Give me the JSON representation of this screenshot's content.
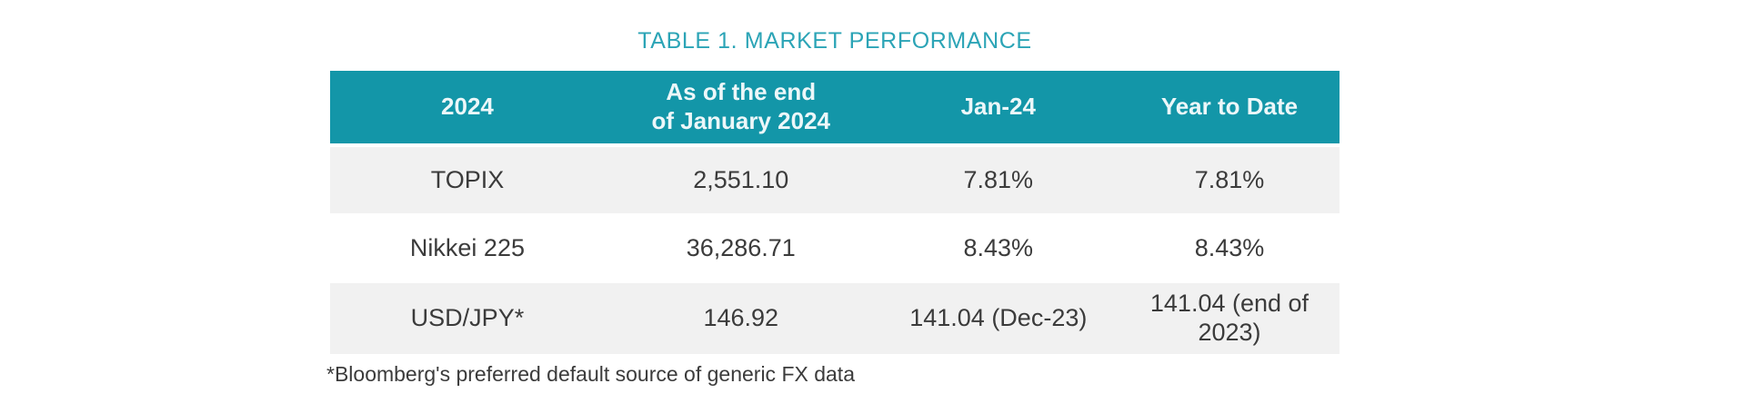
{
  "title": "TABLE 1. MARKET PERFORMANCE",
  "table": {
    "columns": [
      "2024",
      "As of the end\nof January 2024",
      "Jan-24",
      "Year to Date"
    ],
    "rows": [
      {
        "cells": [
          "TOPIX",
          "2,551.10",
          "7.81%",
          "7.81%"
        ]
      },
      {
        "cells": [
          "Nikkei 225",
          "36,286.71",
          "8.43%",
          "8.43%"
        ]
      },
      {
        "cells": [
          "USD/JPY*",
          "146.92",
          "141.04 (Dec-23)",
          "141.04 (end of 2023)"
        ]
      }
    ]
  },
  "footnote": "*Bloomberg's preferred default source of generic FX data",
  "colors": {
    "header_background": "#1396a8",
    "header_text": "#ecf7f9",
    "title_text": "#2ba4b6",
    "shaded_row_background": "#f1f1f1",
    "body_text": "#3b3b3b"
  }
}
